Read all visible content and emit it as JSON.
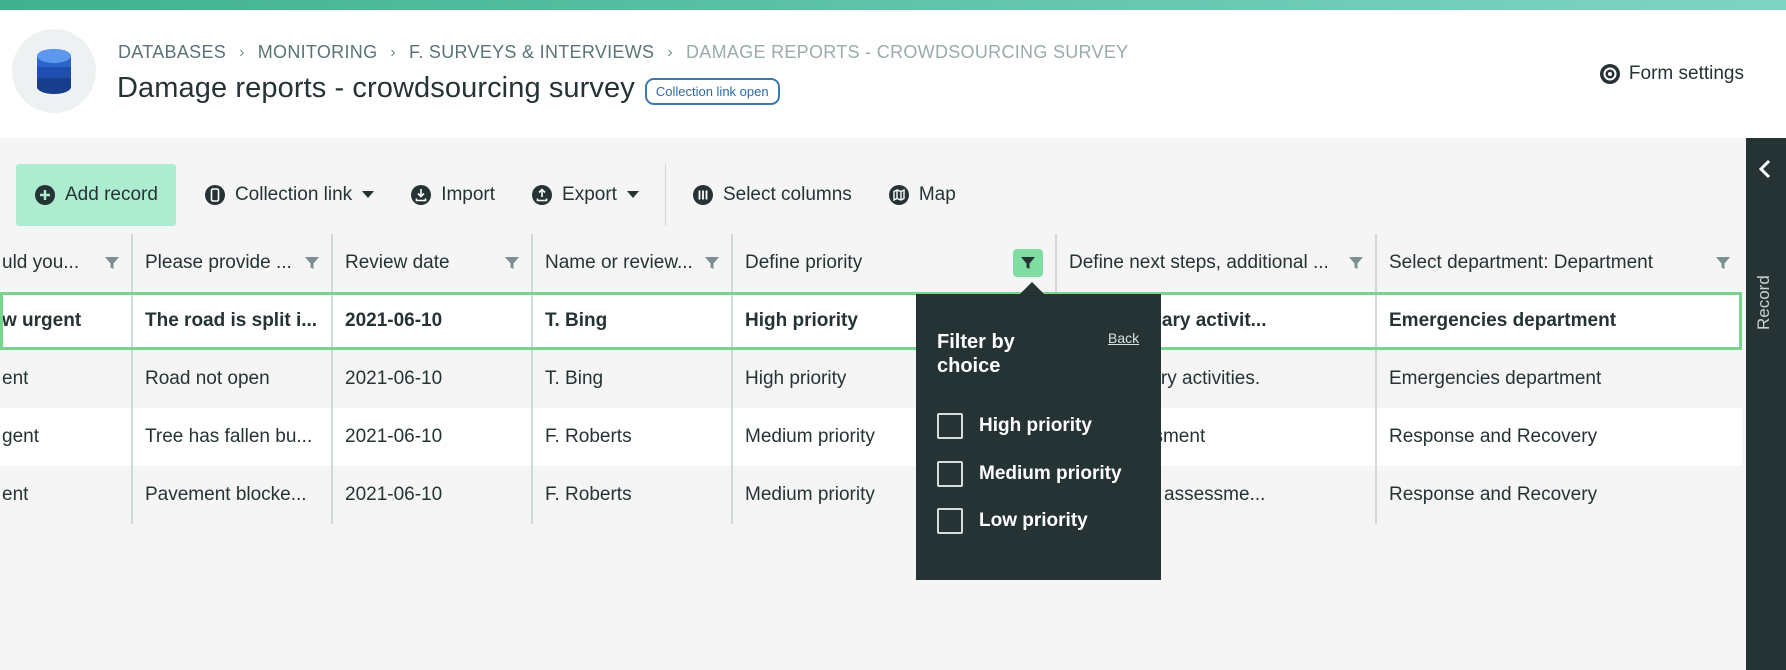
{
  "breadcrumbs": [
    "DATABASES",
    "MONITORING",
    "F. SURVEYS & INTERVIEWS",
    "DAMAGE REPORTS - CROWDSOURCING SURVEY"
  ],
  "page": {
    "title": "Damage reports - crowdsourcing survey",
    "badge": "Collection link open",
    "form_settings": "Form settings"
  },
  "toolbar": {
    "add_record": "Add record",
    "collection_link": "Collection link",
    "import": "Import",
    "export": "Export",
    "select_columns": "Select columns",
    "map": "Map"
  },
  "side_panel": {
    "label": "Record"
  },
  "table": {
    "headers": [
      "uld you...",
      "Please provide ...",
      "Review date",
      "Name or review...",
      "Define priority",
      "Define next steps, additional ...",
      "Select department: Department"
    ],
    "rows": [
      [
        "w urgent",
        "The road is split i...",
        "2021-06-10",
        "T. Bing",
        "High priority",
        "ith necessary activit...",
        "Emergencies department"
      ],
      [
        "ent",
        "Road not open",
        "2021-06-10",
        "T. Bing",
        "High priority",
        "th necessary activities.",
        "Emergencies department"
      ],
      [
        "gent",
        "Tree has fallen bu...",
        "2021-06-10",
        "F. Roberts",
        "Medium priority",
        "vith assessment",
        "Response and Recovery"
      ],
      [
        "ent",
        "Pavement blocke...",
        "2021-06-10",
        "F. Roberts",
        "Medium priority",
        "vith further assessme...",
        "Response and Recovery"
      ]
    ]
  },
  "filter_popover": {
    "title": "Filter by choice",
    "back": "Back",
    "options": [
      "High priority",
      "Medium priority",
      "Low priority"
    ]
  },
  "colors": {
    "accent_green": "#aeecd1",
    "selected_row_outline": "#79d48f",
    "dark_panel": "#263335",
    "badge_blue": "#2d6aa8"
  },
  "icons": {
    "logo": "database-stack-icon",
    "settings": "gear-icon",
    "add": "plus-circle-icon",
    "collection": "mobile-icon",
    "import": "download-icon",
    "export": "upload-icon",
    "columns": "columns-icon",
    "map": "map-icon",
    "filter": "filter-icon",
    "panel": "chevron-left-icon"
  }
}
